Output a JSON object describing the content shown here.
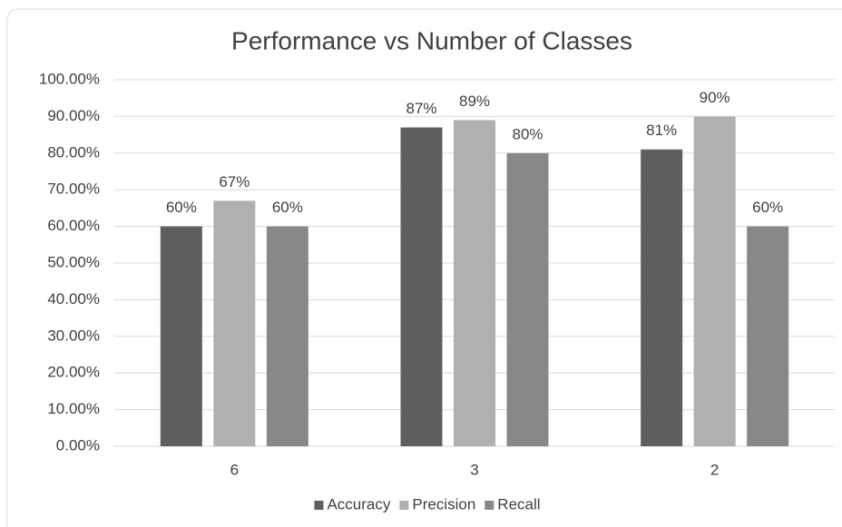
{
  "chart_data": {
    "type": "bar",
    "title": "Performance vs Number of Classes",
    "categories": [
      "6",
      "3",
      "2"
    ],
    "series": [
      {
        "name": "Accuracy",
        "color": "#5f5f5f",
        "values": [
          60,
          87,
          81
        ],
        "value_labels": [
          "60%",
          "87%",
          "81%"
        ]
      },
      {
        "name": "Precision",
        "color": "#b0b0b0",
        "values": [
          67,
          89,
          90
        ],
        "value_labels": [
          "67%",
          "89%",
          "90%"
        ]
      },
      {
        "name": "Recall",
        "color": "#888888",
        "values": [
          60,
          80,
          60
        ],
        "value_labels": [
          "60%",
          "80%",
          "60%"
        ]
      }
    ],
    "ylim": [
      0,
      100
    ],
    "yticks": [
      {
        "value": 0,
        "label": "0.00%"
      },
      {
        "value": 10,
        "label": "10.00%"
      },
      {
        "value": 20,
        "label": "20.00%"
      },
      {
        "value": 30,
        "label": "30.00%"
      },
      {
        "value": 40,
        "label": "40.00%"
      },
      {
        "value": 50,
        "label": "50.00%"
      },
      {
        "value": 60,
        "label": "60.00%"
      },
      {
        "value": 70,
        "label": "70.00%"
      },
      {
        "value": 80,
        "label": "80.00%"
      },
      {
        "value": 90,
        "label": "90.00%"
      },
      {
        "value": 100,
        "label": "100.00%"
      }
    ],
    "grid": true,
    "legend": "bottom"
  }
}
